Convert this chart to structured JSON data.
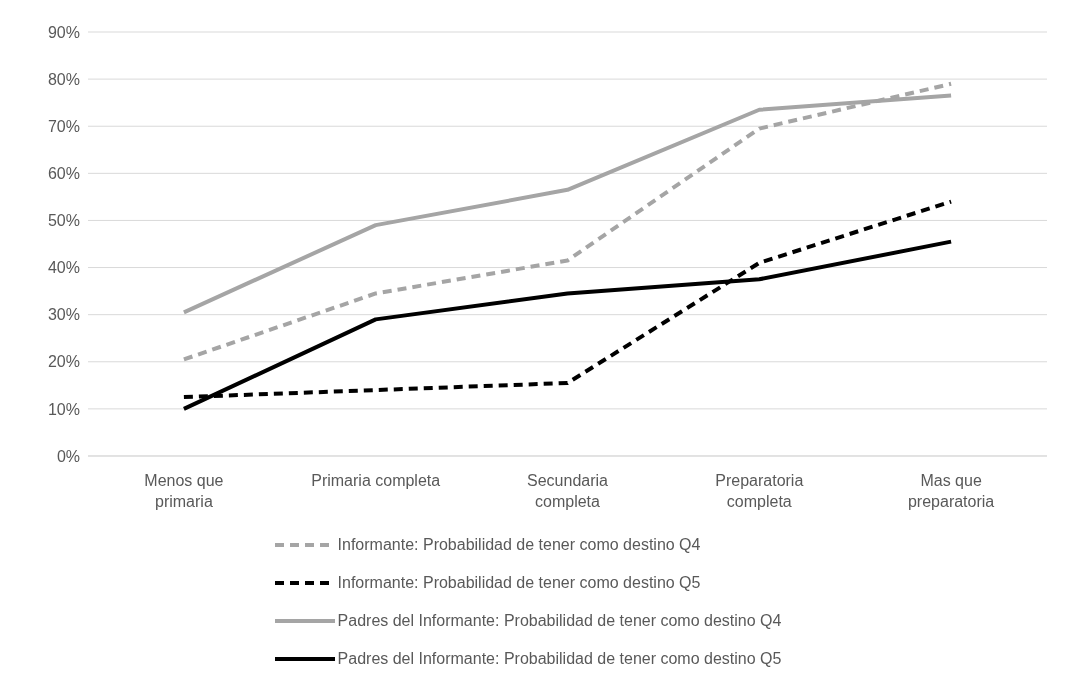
{
  "chart_data": {
    "type": "line",
    "categories": [
      "Menos que primaria",
      "Primaria completa",
      "Secundaria completa",
      "Preparatoria completa",
      "Mas que preparatoria"
    ],
    "series": [
      {
        "name": "Informante: Probabilidad de tener como destino Q4",
        "color": "#a5a5a5",
        "line_style": "dashed",
        "values": [
          20.5,
          34.5,
          41.5,
          69.5,
          79
        ]
      },
      {
        "name": "Informante: Probabilidad de tener como destino Q5",
        "color": "#000000",
        "line_style": "dashed",
        "values": [
          12.5,
          14,
          15.5,
          41,
          54
        ]
      },
      {
        "name": "Padres del Informante: Probabilidad de tener como destino Q4",
        "color": "#a5a5a5",
        "line_style": "solid",
        "values": [
          30.5,
          49,
          56.5,
          73.5,
          76.5
        ]
      },
      {
        "name": "Padres del Informante: Probabilidad de tener como destino Q5",
        "color": "#000000",
        "line_style": "solid",
        "values": [
          10,
          29,
          34.5,
          37.5,
          45.5
        ]
      }
    ],
    "ylim": [
      0,
      90
    ],
    "yticks": [
      {
        "value": 0,
        "label": "0%"
      },
      {
        "value": 10,
        "label": "10%"
      },
      {
        "value": 20,
        "label": "20%"
      },
      {
        "value": 30,
        "label": "30%"
      },
      {
        "value": 40,
        "label": "40%"
      },
      {
        "value": 50,
        "label": "50%"
      },
      {
        "value": 60,
        "label": "60%"
      },
      {
        "value": 70,
        "label": "70%"
      },
      {
        "value": 80,
        "label": "80%"
      },
      {
        "value": 90,
        "label": "90%"
      }
    ],
    "grid": "y",
    "legend": "bottom",
    "marker": "none"
  }
}
